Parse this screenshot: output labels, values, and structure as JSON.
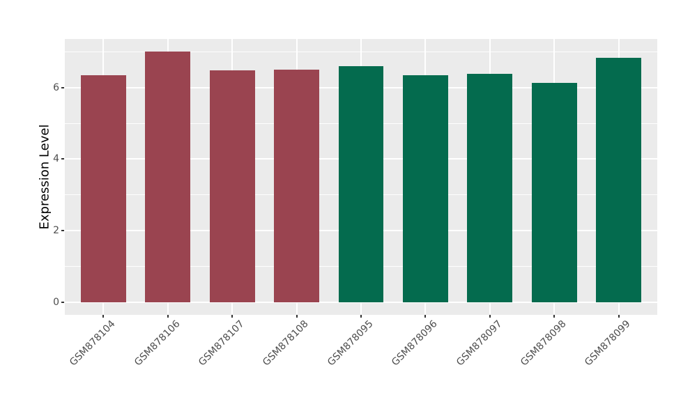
{
  "chart_data": {
    "type": "bar",
    "title": "",
    "xlabel": "",
    "ylabel": "Expression Level",
    "categories": [
      "GSM878104",
      "GSM878106",
      "GSM878107",
      "GSM878108",
      "GSM878095",
      "GSM878096",
      "GSM878097",
      "GSM878098",
      "GSM878099"
    ],
    "values": [
      6.34,
      7.01,
      6.48,
      6.51,
      6.6,
      6.34,
      6.39,
      6.14,
      6.84
    ],
    "bar_colors": [
      "#9A4450",
      "#9A4450",
      "#9A4450",
      "#9A4450",
      "#046B4E",
      "#046B4E",
      "#046B4E",
      "#046B4E",
      "#046B4E"
    ],
    "accent_colors": {
      "maroon": "#9A4450",
      "green": "#046B4E"
    },
    "y_ticks": [
      0,
      2,
      4,
      6
    ],
    "y_minor_ticks": [
      1,
      3,
      5,
      7
    ],
    "ylim": [
      -0.36,
      7.36
    ],
    "x_tick_rotation": 45,
    "bar_width_fraction": 0.7,
    "grid": true,
    "legend": false,
    "panel_background": "#EBEBEB",
    "grid_color": "#FFFFFF",
    "tick_mark_color": "#333333",
    "tick_label_color": "#4D4D4D",
    "axis_title_color": "#000000"
  }
}
